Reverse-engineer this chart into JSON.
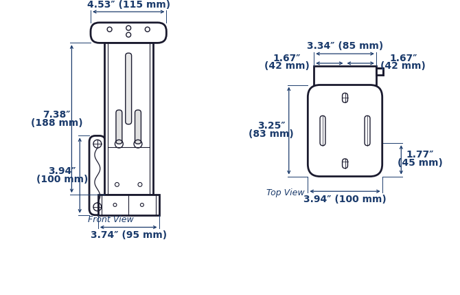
{
  "bg_color": "#ffffff",
  "line_color": "#1a1a2e",
  "dim_color": "#1a3a6b",
  "dim_fontsize": 9,
  "label_fontsize": 9,
  "front_view_label": "Front View",
  "top_view_label": "Top View",
  "dims": {
    "fv_top_width": "4.53″ (115 mm)",
    "fv_height_l1": "7.38″",
    "fv_height_l2": "(188 mm)",
    "fv_bracket_l1": "3.94″",
    "fv_bracket_l2": "(100 mm)",
    "fv_bottom_width": "3.74″ (95 mm)",
    "tv_top_width": "3.34″ (85 mm)",
    "tv_left_l1": "1.67″",
    "tv_left_l2": "(42 mm)",
    "tv_right_l1": "1.67″",
    "tv_right_l2": "(42 mm)",
    "tv_height_l1": "3.25″",
    "tv_height_l2": "(83 mm)",
    "tv_right_h_l1": "1.77″",
    "tv_right_h_l2": "(45 mm)",
    "tv_bottom_width": "3.94″ (100 mm)"
  }
}
